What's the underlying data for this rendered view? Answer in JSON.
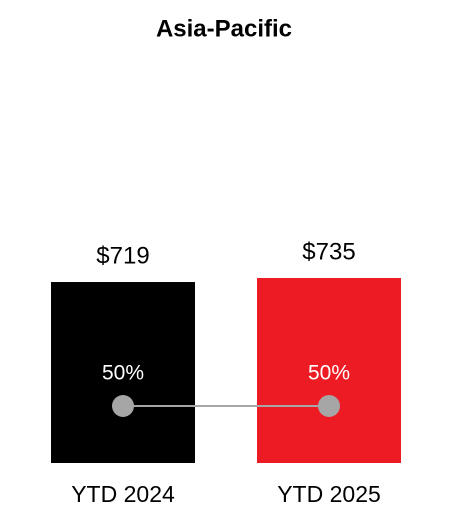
{
  "chart_data": {
    "type": "bar",
    "title": "Asia-Pacific",
    "categories": [
      "YTD 2024",
      "YTD 2025"
    ],
    "series": [
      {
        "type": "bar",
        "values": [
          719,
          735
        ],
        "value_labels": [
          "$719",
          "$735"
        ],
        "colors": [
          "#000000",
          "#ed1c24"
        ]
      },
      {
        "type": "line",
        "axis": "y2",
        "values": [
          50,
          50
        ],
        "value_labels": [
          "50%",
          "50%"
        ],
        "color": "#a6a6a6"
      }
    ]
  }
}
